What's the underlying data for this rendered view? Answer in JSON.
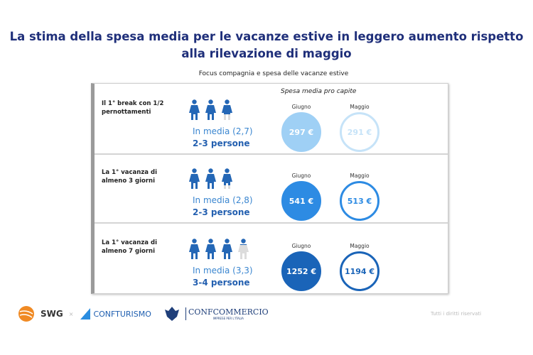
{
  "title": "La stima della spesa media per le vacanze estive in leggero aumento rispetto alla rilevazione di maggio",
  "subtitle": "Focus compagnia e spesa delle vacanze estive",
  "spesa_header": "Spesa media pro capite",
  "rows": [
    {
      "label": "Il 1° break con 1/2 pernottamenti",
      "people_fill": [
        1,
        1,
        0.7
      ],
      "media": "In media (2,7)",
      "persone": "2-3 persone",
      "giugno": {
        "label": "Giugno",
        "value": "297 €",
        "color": "#9fd0f5"
      },
      "maggio": {
        "label": "Maggio",
        "value": "291 €",
        "color": "#c6e3f8"
      }
    },
    {
      "label": "La 1° vacanza di almeno 3 giorni",
      "people_fill": [
        1,
        1,
        0.8
      ],
      "media": "In media (2,8)",
      "persone": "2-3 persone",
      "giugno": {
        "label": "Giugno",
        "value": "541 €",
        "color": "#2d8be3"
      },
      "maggio": {
        "label": "Maggio",
        "value": "513 €",
        "color": "#2d8be3"
      }
    },
    {
      "label": "La 1° vacanza di almeno 7 giorni",
      "people_fill": [
        1,
        1,
        1,
        0.3
      ],
      "media": "In media (3,3)",
      "persone": "3-4 persone",
      "giugno": {
        "label": "Giugno",
        "value": "1252 €",
        "color": "#1a64b8"
      },
      "maggio": {
        "label": "Maggio",
        "value": "1194 €",
        "color": "#1a64b8"
      }
    }
  ],
  "footer": {
    "logo1": "SWG",
    "separator": "×",
    "logo2": "CONFTURISMO",
    "logo3": "CONFCOMMERCIO",
    "logo3_sub": "IMPRESE PER L'ITALIA",
    "rights": "Tutti i diritti riservati"
  },
  "colors": {
    "title": "#1f2f7a",
    "person": "#2467b6",
    "person_empty": "#dcdcdc"
  }
}
